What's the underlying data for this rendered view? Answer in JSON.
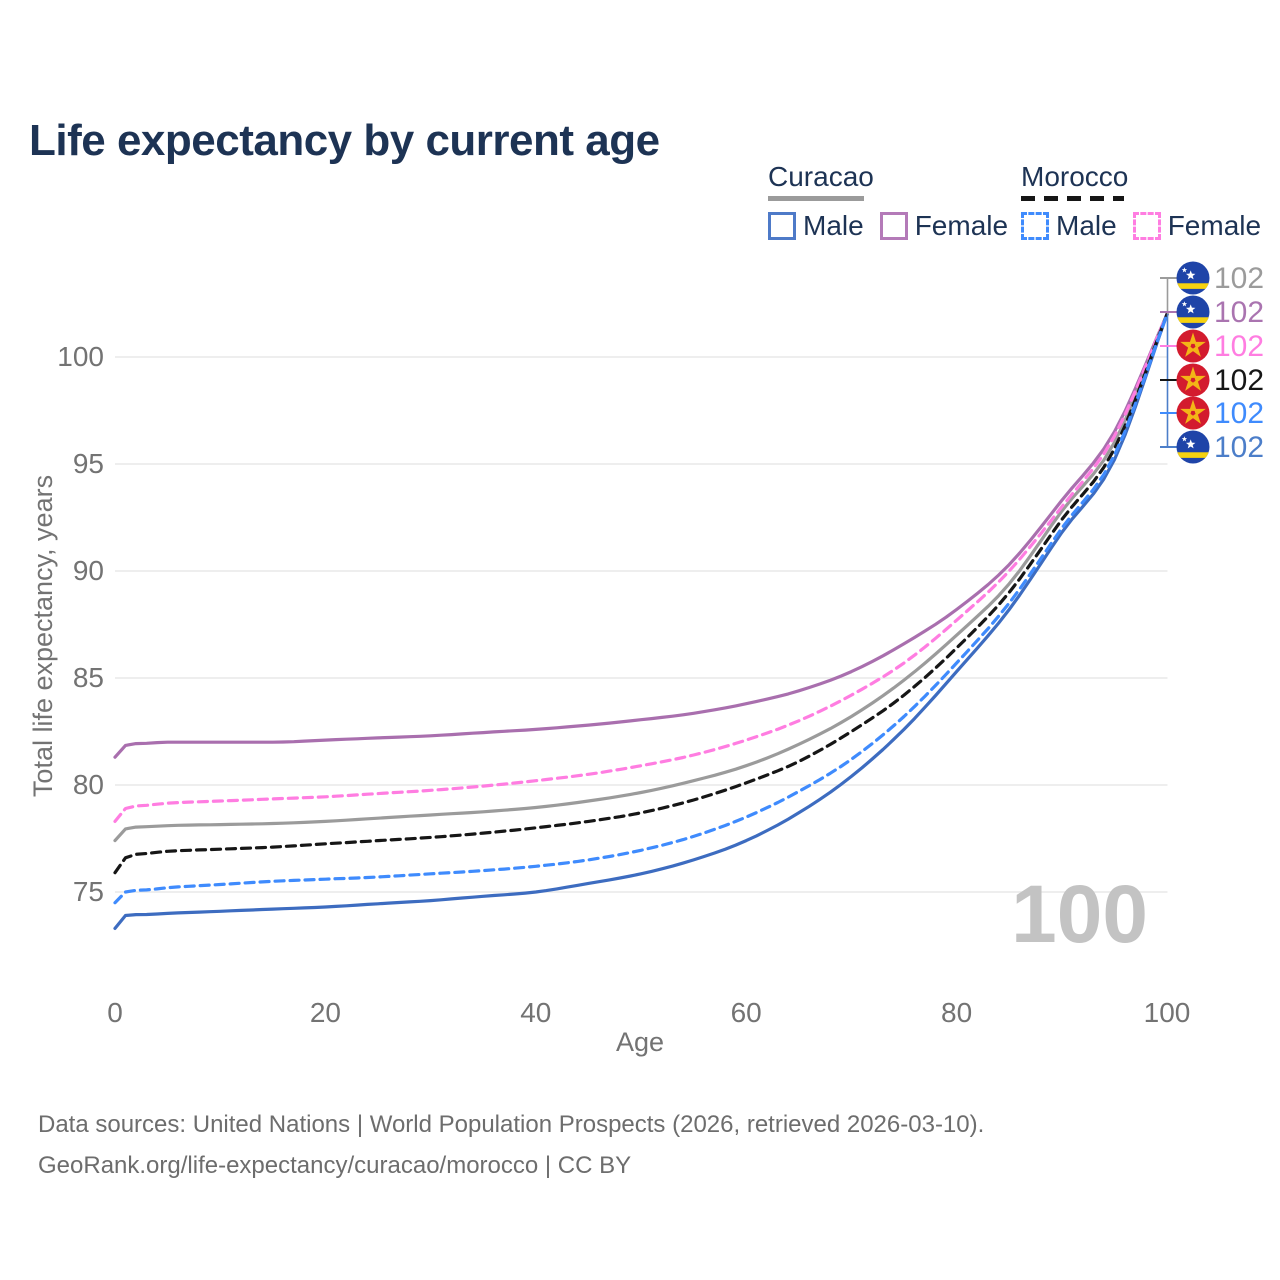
{
  "title": "Life expectancy by current age",
  "watermark_age": "100",
  "legend": {
    "groups": [
      {
        "label": "Curacao",
        "line_style": "solid",
        "underline_color": "#9b9b9b",
        "items": [
          {
            "label": "Male",
            "color": "#4e7ac8"
          },
          {
            "label": "Female",
            "color": "#b47ab8"
          }
        ]
      },
      {
        "label": "Morocco",
        "line_style": "dashed",
        "underline_color": "#161616",
        "items": [
          {
            "label": "Male",
            "color": "#3f8bfd"
          },
          {
            "label": "Female",
            "color": "#ff7de1"
          }
        ]
      }
    ]
  },
  "end_labels": [
    {
      "series": "Curacao Both sexes",
      "flag": "curacao",
      "value": "102",
      "color": "#9b9b9b"
    },
    {
      "series": "Curacao Female",
      "flag": "curacao",
      "value": "102",
      "color": "#aa74b0"
    },
    {
      "series": "Morocco Female",
      "flag": "morocco",
      "value": "102",
      "color": "#ff7de1"
    },
    {
      "series": "Morocco Both sexes",
      "flag": "morocco",
      "value": "102",
      "color": "#161616"
    },
    {
      "series": "Morocco Male",
      "flag": "morocco",
      "value": "102",
      "color": "#3f8bfd"
    },
    {
      "series": "Curacao Male",
      "flag": "curacao",
      "value": "102",
      "color": "#4c7ec9"
    }
  ],
  "footer": {
    "line1": "Data sources: United Nations | World Population Prospects (2026, retrieved 2026-03-10).",
    "line2": "GeoRank.org/life-expectancy/curacao/morocco | CC BY"
  },
  "chart_data": {
    "type": "line",
    "title": "Life expectancy by current age",
    "xlabel": "Age",
    "ylabel": "Total life expectancy, years",
    "xlim": [
      0,
      100
    ],
    "ylim": [
      73,
      103
    ],
    "xticks": [
      0,
      20,
      40,
      60,
      80,
      100
    ],
    "yticks": [
      75,
      80,
      85,
      90,
      95,
      100
    ],
    "grid": "horizontal",
    "legend_position": "top-right",
    "x": [
      0,
      1,
      3,
      5,
      10,
      15,
      20,
      25,
      30,
      35,
      40,
      45,
      50,
      55,
      60,
      65,
      70,
      75,
      80,
      85,
      90,
      95,
      100
    ],
    "series": [
      {
        "name": "Curacao Female",
        "color": "#a96fae",
        "dash": "solid",
        "end_label": 102,
        "values": [
          81.3,
          81.85,
          81.95,
          82.0,
          82.0,
          82.0,
          82.1,
          82.2,
          82.3,
          82.45,
          82.6,
          82.8,
          83.05,
          83.35,
          83.8,
          84.4,
          85.3,
          86.6,
          88.2,
          90.3,
          93.3,
          96.5,
          102
        ]
      },
      {
        "name": "Morocco Female",
        "color": "#ff7de1",
        "dash": "dashed",
        "end_label": 102,
        "values": [
          78.3,
          78.9,
          79.05,
          79.15,
          79.25,
          79.35,
          79.45,
          79.6,
          79.75,
          79.95,
          80.2,
          80.5,
          80.9,
          81.4,
          82.1,
          83.0,
          84.2,
          85.7,
          87.7,
          90.0,
          93.0,
          96.3,
          102
        ]
      },
      {
        "name": "Curacao Both sexes",
        "color": "#9b9b9b",
        "dash": "solid",
        "end_label": 102,
        "values": [
          77.4,
          77.95,
          78.05,
          78.1,
          78.15,
          78.2,
          78.3,
          78.45,
          78.6,
          78.75,
          78.95,
          79.25,
          79.65,
          80.2,
          80.9,
          81.9,
          83.2,
          84.9,
          87.0,
          89.4,
          92.8,
          96.0,
          102
        ]
      },
      {
        "name": "Morocco Both sexes",
        "color": "#161616",
        "dash": "dashed",
        "end_label": 102,
        "values": [
          75.9,
          76.6,
          76.8,
          76.9,
          77.0,
          77.1,
          77.25,
          77.4,
          77.55,
          77.75,
          78.0,
          78.3,
          78.7,
          79.3,
          80.1,
          81.1,
          82.5,
          84.2,
          86.4,
          89.0,
          92.4,
          95.7,
          102
        ]
      },
      {
        "name": "Morocco Male",
        "color": "#3f8bfd",
        "dash": "dashed",
        "end_label": 102,
        "values": [
          74.5,
          75.0,
          75.1,
          75.2,
          75.35,
          75.5,
          75.6,
          75.7,
          75.85,
          76.0,
          76.2,
          76.5,
          76.95,
          77.6,
          78.5,
          79.7,
          81.2,
          83.2,
          85.7,
          88.5,
          92.0,
          95.4,
          102
        ]
      },
      {
        "name": "Curacao Male",
        "color": "#3d6cc0",
        "dash": "solid",
        "end_label": 102,
        "values": [
          73.3,
          73.9,
          73.95,
          74.0,
          74.1,
          74.2,
          74.3,
          74.45,
          74.6,
          74.8,
          75.0,
          75.4,
          75.85,
          76.5,
          77.4,
          78.7,
          80.4,
          82.6,
          85.3,
          88.2,
          91.8,
          95.2,
          102
        ]
      }
    ]
  }
}
